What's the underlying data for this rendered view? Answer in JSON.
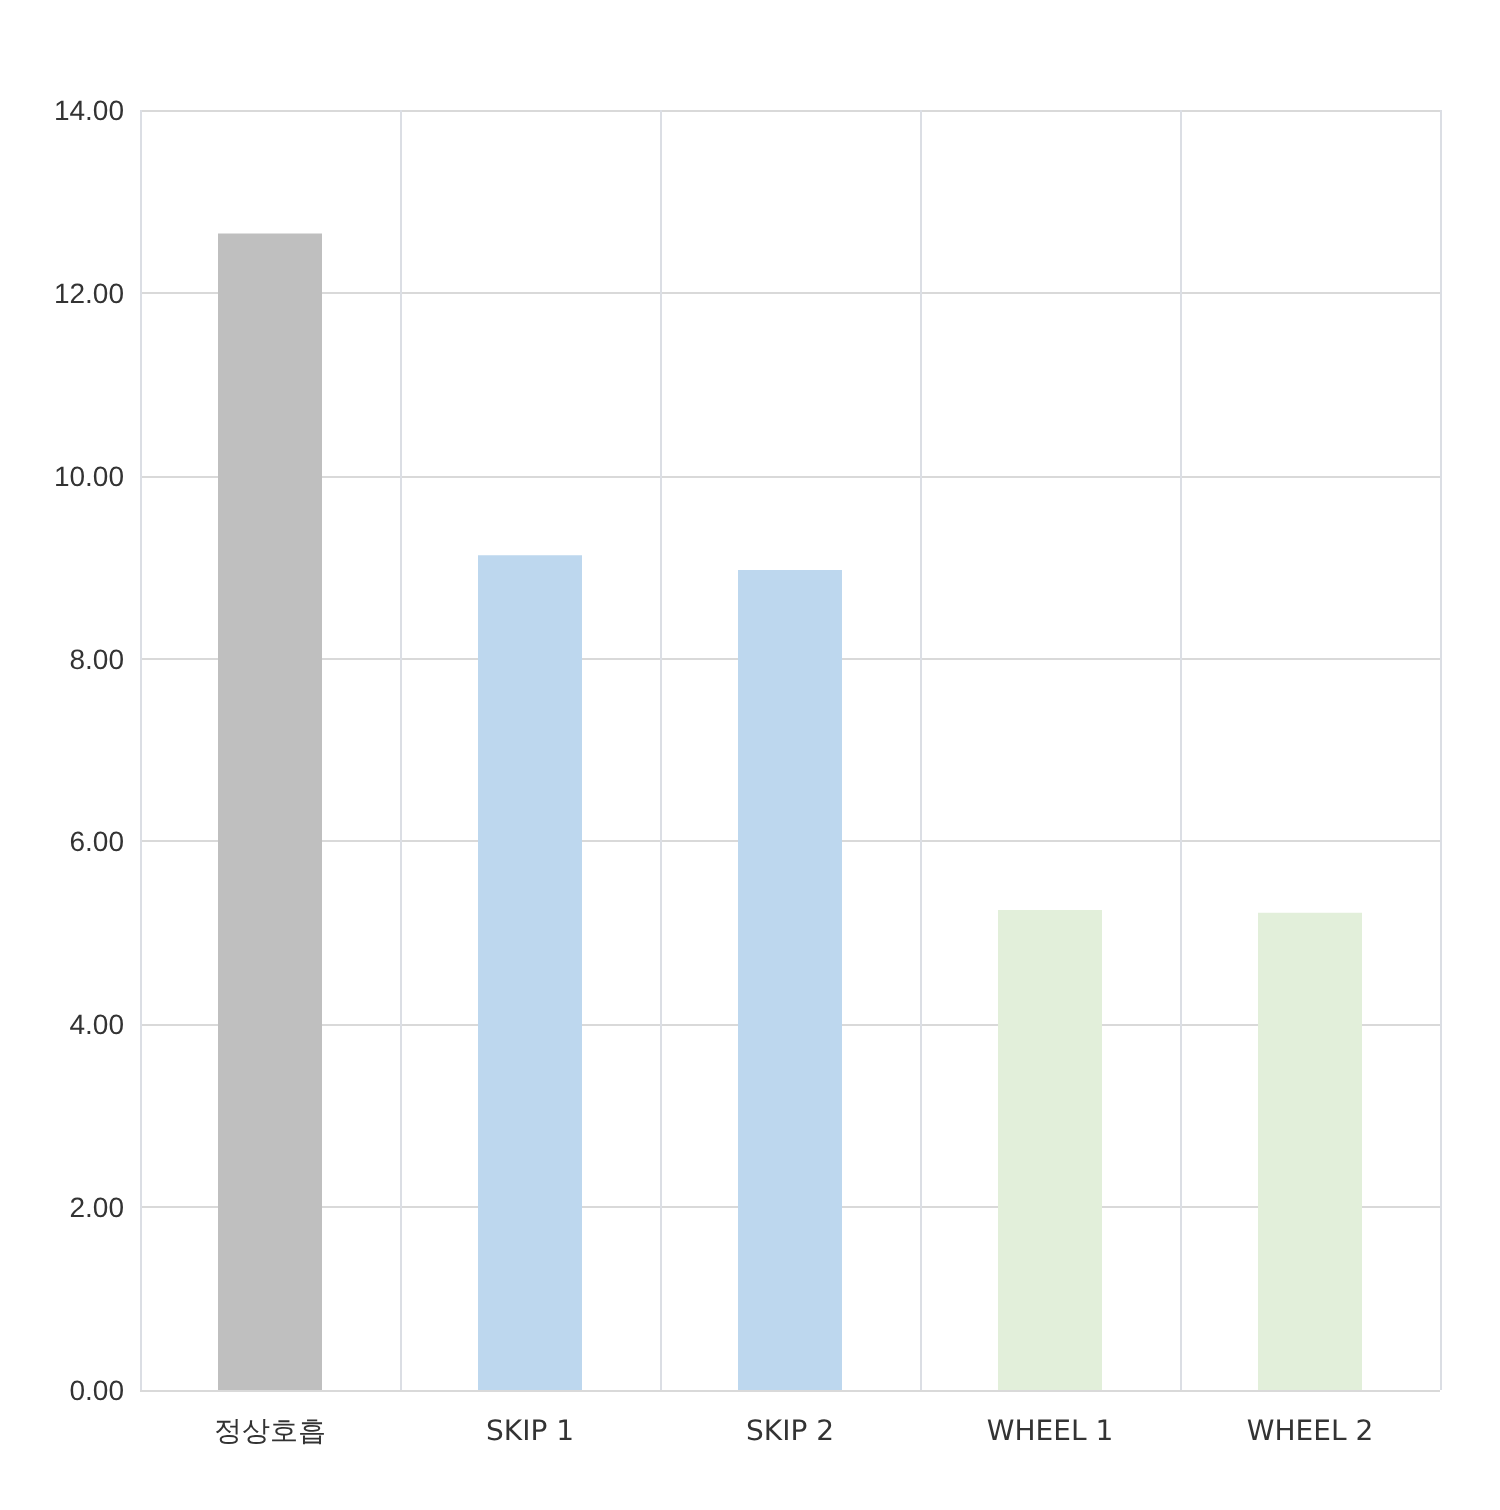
{
  "chart_data": {
    "type": "bar",
    "categories": [
      "정상호흡",
      "SKIP 1",
      "SKIP 2",
      "WHEEL 1",
      "WHEEL 2"
    ],
    "values": [
      12.65,
      9.13,
      8.97,
      5.25,
      5.22
    ],
    "colors": [
      "#bfbfbf",
      "#bdd7ee",
      "#bdd7ee",
      "#e2efda",
      "#e2efda"
    ],
    "ylim": [
      0,
      14
    ],
    "yticks": [
      {
        "value": 0,
        "label": "0.00"
      },
      {
        "value": 2,
        "label": "2.00"
      },
      {
        "value": 4,
        "label": "4.00"
      },
      {
        "value": 6,
        "label": "6.00"
      },
      {
        "value": 8,
        "label": "8.00"
      },
      {
        "value": 10,
        "label": "10.00"
      },
      {
        "value": 12,
        "label": "12.00"
      },
      {
        "value": 14,
        "label": "14.00"
      }
    ],
    "grid": true
  }
}
